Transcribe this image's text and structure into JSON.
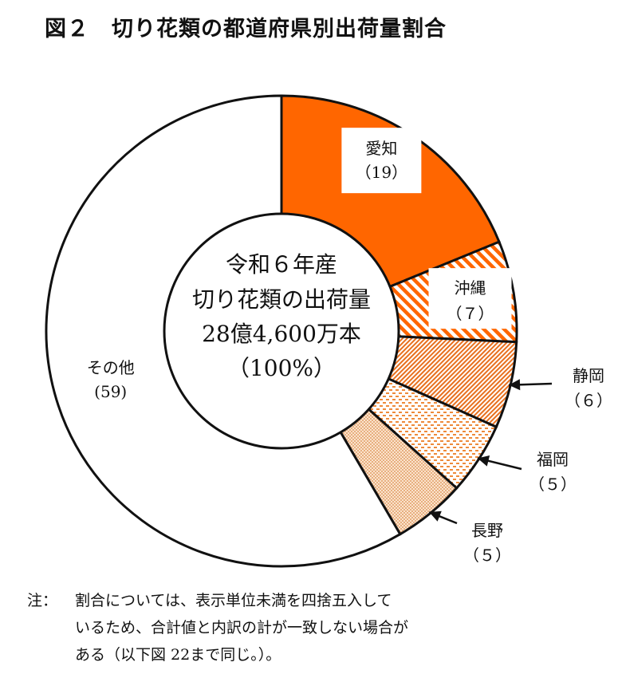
{
  "title": "図２　切り花類の都道府県別出荷量割合",
  "chart_data": {
    "type": "pie",
    "title": "図２　切り花類の都道府県別出荷量割合",
    "center_text": [
      "令和６年産",
      "切り花類の出荷量",
      "28億4,600万本",
      "（100%）"
    ],
    "unit": "%",
    "slices": [
      {
        "label": "愛知",
        "value_label": "（19）",
        "value": 19,
        "color": "#ff6600",
        "fill": "solid"
      },
      {
        "label": "沖縄",
        "value_label": "（７）",
        "value": 7,
        "color": "#ff6600",
        "fill": "diagonal-stripes"
      },
      {
        "label": "静岡",
        "value_label": "（６）",
        "value": 6,
        "color": "#ee7722",
        "fill": "fine-diagonal"
      },
      {
        "label": "福岡",
        "value_label": "（５）",
        "value": 5,
        "color": "#f0a060",
        "fill": "checker"
      },
      {
        "label": "長野",
        "value_label": "（５）",
        "value": 5,
        "color": "#e9a46a",
        "fill": "dots"
      },
      {
        "label": "その他",
        "value_label": "(59)",
        "value": 59,
        "color": "#ffffff",
        "fill": "none"
      }
    ]
  },
  "note": {
    "lead": "注：",
    "text": "割合については、表示単位未満を四捨五入して\nいるため、合計値と内訳の計が一致しない場合が\nある（以下図 22まで同じ。）。"
  }
}
